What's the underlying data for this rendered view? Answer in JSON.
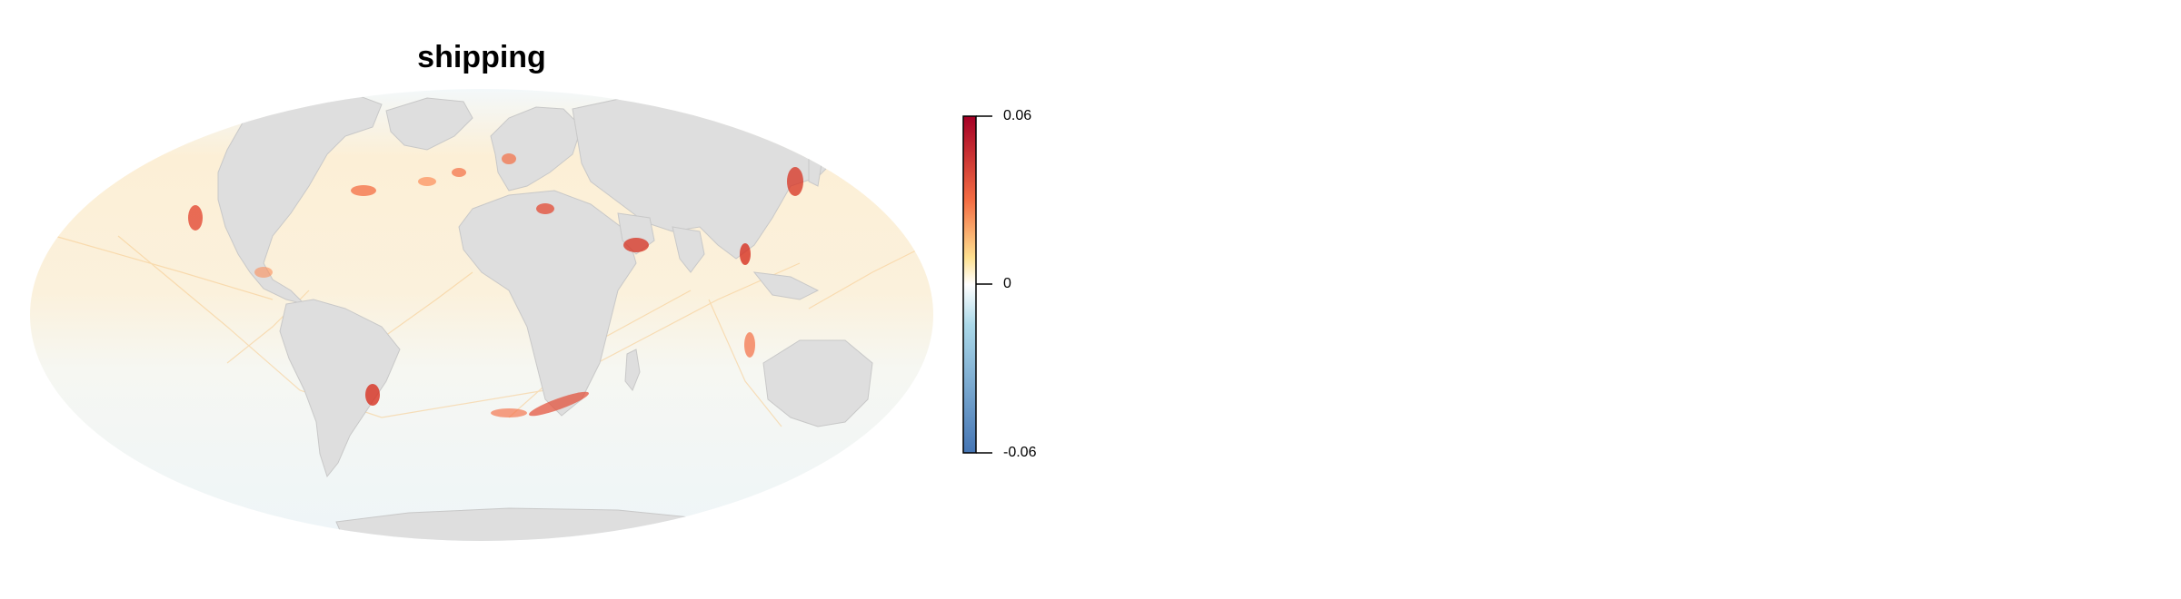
{
  "map": {
    "title": "shipping",
    "projection": "mollweide",
    "ocean_color": "#f2f7fa",
    "land_color": "#dedede",
    "border_color": "#c8c8c8"
  },
  "legend": {
    "max_label": "0.06",
    "mid_label": "0",
    "min_label": "-0.06",
    "max_value": 0.06,
    "mid_value": 0,
    "min_value": -0.06,
    "colors": {
      "high": "#a50026",
      "upper_mid": "#f46d43",
      "warm": "#fee090",
      "neutral": "#ffffff",
      "cool": "#abd9e9",
      "low": "#4575b4"
    }
  }
}
